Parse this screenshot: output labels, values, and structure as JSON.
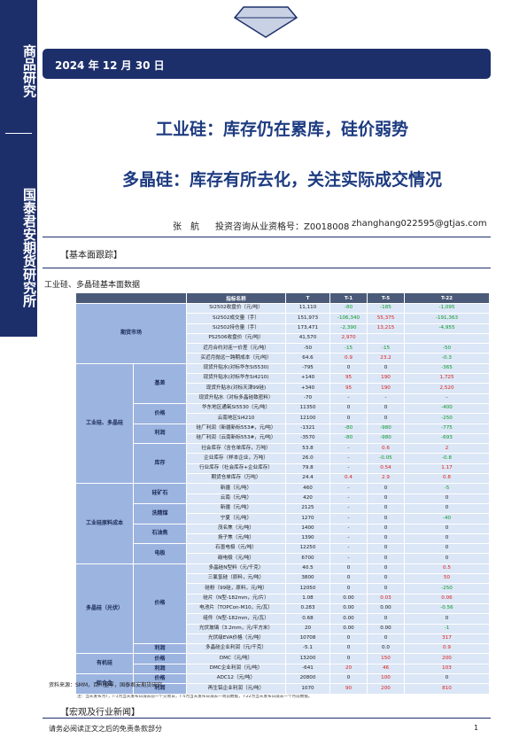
{
  "sidebar": {
    "top": "商品研究",
    "bottom": "国泰君安期货研究所"
  },
  "header": {
    "date": "2024 年 12 月 30 日"
  },
  "titles": [
    "工业硅：库存仍在累库，硅价弱势",
    "多晶硅：库存有所去化，关注实际成交情况"
  ],
  "author": {
    "name": "张　航",
    "license": "投资咨询从业资格号：Z0018008",
    "email": "zhanghang022595@gtjas.com"
  },
  "section1": "【基本面跟踪】",
  "table": {
    "caption": "工业硅、多晶硅基本面数据",
    "columns": [
      "指标名称",
      "T",
      "T-1",
      "T-5",
      "T-22"
    ],
    "groups": [
      {
        "label": "期货市场",
        "subgroups": [
          {
            "rows": [
              [
                "Si2502收盘价（元/吨）",
                "11,110",
                "-80",
                "-185",
                "-1,095"
              ],
              [
                "Si2502成交量（手）",
                "151,973",
                "-106,340",
                "55,375",
                "-191,363"
              ],
              [
                "Si2502持仓量（手）",
                "173,471",
                "-2,390",
                "13,215",
                "-4,955"
              ],
              [
                "PS2506收盘价（元/吨）",
                "41,570",
                "2,970"
              ],
              [
                "近月合约对连一价差（元/吨）",
                "-50",
                "-15",
                "-15",
                "-50"
              ],
              [
                "买近月抛远一跨期成本（元/吨）",
                "64.6",
                "0.9",
                "23.2",
                "-0.3"
              ]
            ]
          }
        ]
      },
      {
        "label": "工业硅、多晶硅",
        "subgroups": [
          {
            "label": "基差",
            "rows": [
              [
                "现货升贴水(对标华东Si5530)",
                "-795",
                "0",
                "0",
                "-365"
              ],
              [
                "现货升贴水(对标华东Si4210)",
                "+140",
                "95",
                "190",
                "1,725"
              ],
              [
                "现货升贴水(对标天津99硅)",
                "+340",
                "95",
                "190",
                "2,520"
              ],
              [
                "现货升贴水（对标多晶硅致密料）",
                "-70",
                "-",
                "-",
                "-"
              ]
            ]
          },
          {
            "label": "价格",
            "rows": [
              [
                "华东地区通氧Si5530（元/吨）",
                "11350",
                "0",
                "0",
                "-400"
              ],
              [
                "云南地区Si4210",
                "12100",
                "0",
                "0",
                "-250"
              ]
            ]
          },
          {
            "label": "利润",
            "rows": [
              [
                "硅厂利润（新疆新标553#，元/吨）",
                "-1321",
                "-80",
                "-980",
                "-775"
              ],
              [
                "硅厂利润（云南新标553#，元/吨）",
                "-3570",
                "-80",
                "-980",
                "-693"
              ]
            ]
          },
          {
            "label": "库存",
            "rows": [
              [
                "社会库存（含仓单库存，万吨）",
                "53.8",
                "-",
                "0.6",
                "2"
              ],
              [
                "企业库存（样本企业，万吨）",
                "26.0",
                "-",
                "-0.05",
                "-0.8"
              ],
              [
                "行业库存（社会库存+企业库存）",
                "79.8",
                "-",
                "0.54",
                "1.17"
              ],
              [
                "期货仓单库存（万吨）",
                "24.4",
                "0.4",
                "2.9",
                "0.8"
              ]
            ]
          }
        ]
      },
      {
        "label": "工业硅原料成本",
        "subgroups": [
          {
            "label": "硅矿石",
            "rows": [
              [
                "新疆（元/吨）",
                "460",
                "-",
                "0",
                "-5"
              ],
              [
                "云南（元/吨）",
                "420",
                "-",
                "0",
                "0"
              ]
            ]
          },
          {
            "label": "洗精煤",
            "rows": [
              [
                "新疆（元/吨）",
                "2125",
                "-",
                "0",
                "0"
              ],
              [
                "宁夏（元/吨）",
                "1270",
                "-",
                "0",
                "-40"
              ]
            ]
          },
          {
            "label": "石油焦",
            "rows": [
              [
                "茂名焦（元/吨）",
                "1400",
                "-",
                "0",
                "0"
              ],
              [
                "扬子焦（元/吨）",
                "1390",
                "-",
                "0",
                "0"
              ]
            ]
          },
          {
            "label": "电极",
            "rows": [
              [
                "石墨电极（元/吨）",
                "12250",
                "-",
                "0",
                "0"
              ],
              [
                "碳电极（元/吨）",
                "6700",
                "-",
                "0",
                "0"
              ]
            ]
          }
        ]
      },
      {
        "label": "多晶硅（光伏）",
        "subgroups": [
          {
            "label": "价格",
            "rows": [
              [
                "多晶硅N型料（元/千克）",
                "40.5",
                "0",
                "0",
                "0.5"
              ],
              [
                "三氯氢硅（原料，元/吨）",
                "3800",
                "0",
                "0",
                "50"
              ],
              [
                "硅粉（99硅，原料，元/吨）",
                "12050",
                "0",
                "0",
                "-250"
              ],
              [
                "硅片（N型-182mm，元/片）",
                "1.08",
                "0.00",
                "0.03",
                "0.06"
              ],
              [
                "电池片（TOPCon-M10，元/瓦）",
                "0.283",
                "0.00",
                "0.00",
                "-0.56"
              ],
              [
                "组件（N型-182mm，元/瓦）",
                "0.68",
                "0.00",
                "0",
                "0"
              ],
              [
                "光伏玻璃（3.2mm，元/平方米）",
                "20",
                "0.00",
                "0.00",
                "-1"
              ],
              [
                "光伏级EVA价格（元/吨）",
                "10708",
                "0",
                "0",
                "317"
              ]
            ]
          },
          {
            "label": "利润",
            "rows": [
              [
                "多晶硅企业利润（元/千克）",
                "-5.1",
                "0",
                "0.0",
                "0.9"
              ]
            ]
          }
        ]
      },
      {
        "label": "有机硅",
        "subgroups": [
          {
            "label": "价格",
            "rows": [
              [
                "DMC（元/吨）",
                "13200",
                "0",
                "150",
                "200"
              ]
            ]
          },
          {
            "label": "利润",
            "rows": [
              [
                "DMC企业利润（元/吨）",
                "-641",
                "20",
                "46",
                "103"
              ]
            ]
          }
        ]
      },
      {
        "label": "铝合金",
        "subgroups": [
          {
            "label": "价格",
            "rows": [
              [
                "ADC12（元/吨）",
                "20800",
                "0",
                "100",
                "0"
              ]
            ]
          },
          {
            "label": "利润",
            "rows": [
              [
                "再生铝企业利润（元/吨）",
                "1070",
                "90",
                "200",
                "810"
              ]
            ]
          }
        ]
      }
    ],
    "note": "注：当天发布为T，T-1为当天发布日减去前一个交易日，T-5为当天发布日减去一周前数据，T-22为当天发布日减去一个月前数据。"
  },
  "source": "资料来源：SMM，百川盈孚，国泰君安期货研究",
  "section2": "【宏观及行业新闻】",
  "footer": {
    "disclaimer": "请务必阅读正文之后的免责条款部分",
    "page": "1"
  }
}
